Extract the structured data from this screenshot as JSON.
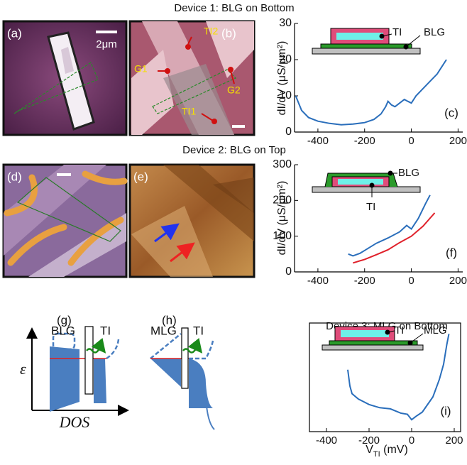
{
  "headings": {
    "device1": "Device 1: BLG on Bottom",
    "device2": "Device 2: BLG on Top",
    "device3": "Device 3: MLG on Bottom"
  },
  "images": {
    "a": {
      "label": "(a)",
      "scale": "2μm"
    },
    "b": {
      "label": "(b)",
      "leads": [
        "TI2",
        "G1",
        "G2",
        "TI1"
      ]
    },
    "d": {
      "label": "(d)"
    },
    "e": {
      "label": "(e)"
    }
  },
  "diagrams": {
    "g": {
      "label": "(g)",
      "left": "BLG",
      "right": "TI",
      "y_axis": "ε",
      "x_axis": "DOS"
    },
    "h": {
      "label": "(h)",
      "left": "MLG",
      "right": "TI"
    }
  },
  "chart_data": [
    {
      "type": "line",
      "panel_label": "(c)",
      "y_label": "dI/dV (μS/μm²)",
      "inset_labels": [
        "TI",
        "BLG"
      ],
      "xlim": [
        -500,
        220
      ],
      "xticks": [
        -400,
        -200,
        0,
        200
      ],
      "ylim": [
        0,
        30
      ],
      "yticks": [
        0,
        10,
        20,
        30
      ],
      "series": [
        {
          "color": "#2a6ebb",
          "x": [
            -495,
            -470,
            -440,
            -400,
            -350,
            -300,
            -250,
            -200,
            -160,
            -130,
            -110,
            -100,
            -85,
            -70,
            -50,
            -30,
            -15,
            0,
            20,
            50,
            80,
            110,
            130,
            150
          ],
          "values": [
            10,
            6,
            4,
            3,
            2.4,
            2,
            2.2,
            2.6,
            3.5,
            5,
            7,
            8.5,
            7.5,
            7,
            8,
            9,
            8.5,
            8,
            10,
            12,
            14,
            16,
            18,
            20
          ]
        }
      ]
    },
    {
      "type": "line",
      "panel_label": "(f)",
      "y_label": "dI/dV (μS/μm²)",
      "inset_labels": [
        "BLG",
        "TI"
      ],
      "xlim": [
        -500,
        220
      ],
      "xticks": [
        -400,
        -200,
        0,
        200
      ],
      "ylim": [
        0,
        300
      ],
      "yticks": [
        0,
        100,
        200,
        300
      ],
      "series": [
        {
          "color": "#2a6ebb",
          "x": [
            -270,
            -250,
            -220,
            -200,
            -150,
            -100,
            -50,
            -20,
            0,
            30,
            60,
            80
          ],
          "values": [
            50,
            45,
            52,
            60,
            80,
            95,
            112,
            130,
            120,
            150,
            190,
            215
          ]
        },
        {
          "color": "#e0202a",
          "x": [
            -250,
            -200,
            -150,
            -100,
            -50,
            0,
            50,
            100
          ],
          "values": [
            25,
            35,
            48,
            62,
            82,
            100,
            128,
            165
          ]
        }
      ]
    },
    {
      "type": "line",
      "panel_label": "(i)",
      "x_label": [
        "V",
        "TI",
        " (mV)"
      ],
      "inset_labels": [
        "TI",
        "MLG"
      ],
      "xlim": [
        -480,
        230
      ],
      "xticks": [
        -400,
        -200,
        0,
        200
      ],
      "ylim": [
        0,
        100
      ],
      "frame": true,
      "series": [
        {
          "color": "#2a6ebb",
          "x": [
            -300,
            -290,
            -280,
            -250,
            -200,
            -150,
            -100,
            -50,
            -20,
            0,
            20,
            50,
            100,
            130,
            150,
            165,
            175
          ],
          "values": [
            57,
            42,
            35,
            30,
            25,
            22,
            21,
            17,
            16,
            11,
            14,
            18,
            32,
            48,
            62,
            80,
            90
          ]
        }
      ]
    }
  ]
}
